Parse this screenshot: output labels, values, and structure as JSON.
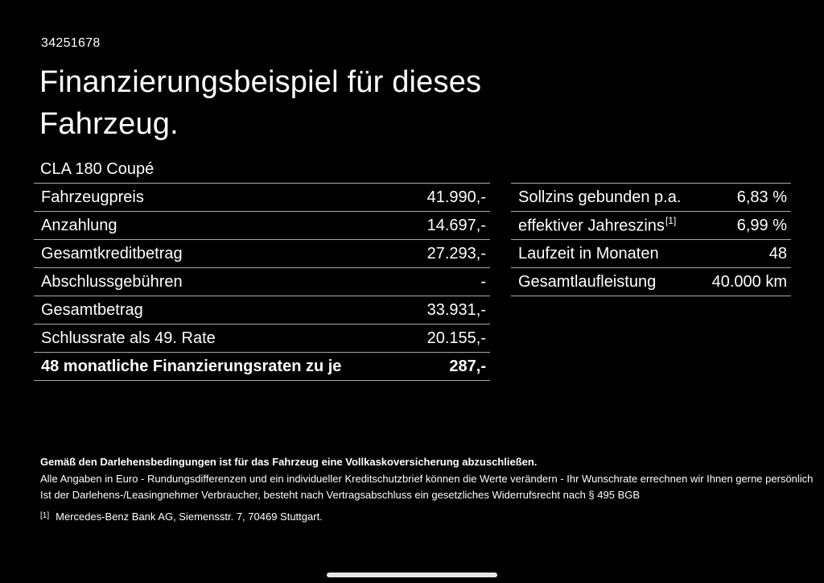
{
  "page": {
    "id_number": "34251678",
    "title": "Finanzierungsbeispiel für dieses Fahrzeug.",
    "model": "CLA 180 Coupé"
  },
  "finance_table": {
    "rows": [
      {
        "label": "Fahrzeugpreis",
        "value": "41.990,-"
      },
      {
        "label": "Anzahlung",
        "value": "14.697,-"
      },
      {
        "label": "Gesamtkreditbetrag",
        "value": "27.293,-"
      },
      {
        "label": "Abschlussgebühren",
        "value": "-"
      },
      {
        "label": "Gesamtbetrag",
        "value": "33.931,-"
      },
      {
        "label": "Schlussrate als 49. Rate",
        "value": "20.155,-"
      },
      {
        "label": "48 monatliche Finanzierungsraten zu je",
        "value": "287,-"
      }
    ]
  },
  "conditions_table": {
    "rows": [
      {
        "label": "Sollzins gebunden p.a.",
        "value": "6,83 %"
      },
      {
        "label": "effektiver Jahreszins",
        "label_sup": "[1]",
        "value": "6,99 %"
      },
      {
        "label": "Laufzeit in Monaten",
        "value": "48"
      },
      {
        "label": "Gesamtlaufleistung",
        "value": "40.000 km"
      }
    ]
  },
  "disclaimer": {
    "line1": "Gemäß den Darlehensbedingungen ist für das Fahrzeug eine Vollkaskoversicherung abzuschließen.",
    "line2": "Alle Angaben in Euro - Rundungsdifferenzen und ein individueller Kreditschutzbrief können die Werte verändern - Ihr Wunschrate errechnen wir Ihnen gerne persönlich",
    "line3": "Ist der Darlehens-/Leasingnehmer Verbraucher, besteht nach Vertragsabschluss ein gesetzliches Widerrufsrecht nach § 495 BGB",
    "footnote_marker": "[1]",
    "footnote_text": "Mercedes-Benz Bank AG, Siemensstr. 7, 70469 Stuttgart."
  },
  "colors": {
    "background": "#000000",
    "text": "#ffffff",
    "divider": "#a8a8a8",
    "home_indicator": "#e6e6e6"
  }
}
